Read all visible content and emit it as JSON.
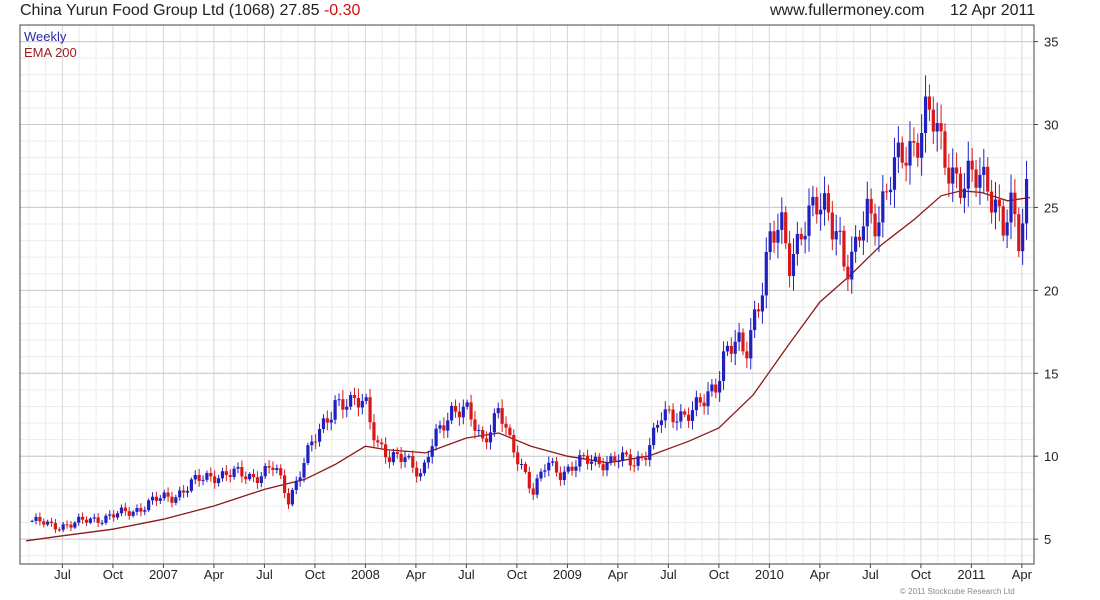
{
  "header": {
    "company": "China Yurun Food Group Ltd",
    "code": "(1068)",
    "price": "27.85",
    "change": "-0.30",
    "website": "www.fullermoney.com",
    "date": "12 Apr 2011"
  },
  "legend": {
    "period": "Weekly",
    "indicator": "EMA 200"
  },
  "copyright": "© 2011 Stockcube Research Ltd",
  "chart_data": {
    "type": "candlestick",
    "title": "China Yurun Food Group Ltd (1068) 27.85 -0.30",
    "series": [
      {
        "name": "Weekly"
      },
      {
        "name": "EMA 200"
      }
    ],
    "ylim": [
      3.5,
      36
    ],
    "y_ticks": [
      5,
      10,
      15,
      20,
      25,
      30,
      35
    ],
    "y_tick_labels": [
      "5",
      "10",
      "15",
      "20",
      "25",
      "30",
      "35"
    ],
    "x_ticks": [
      "Jul",
      "Oct",
      "2007",
      "Apr",
      "Jul",
      "Oct",
      "2008",
      "Apr",
      "Jul",
      "Oct",
      "2009",
      "Apr",
      "Jul",
      "Oct",
      "2010",
      "Apr",
      "Jul",
      "Oct",
      "2011",
      "Apr"
    ],
    "x_tick_months": [
      2006.5,
      2006.75,
      2007.0,
      2007.25,
      2007.5,
      2007.75,
      2008.0,
      2008.25,
      2008.5,
      2008.75,
      2009.0,
      2009.25,
      2009.5,
      2009.75,
      2010.0,
      2010.25,
      2010.5,
      2010.75,
      2011.0,
      2011.25
    ],
    "grid": true,
    "price_path": [
      [
        2006.35,
        6.1
      ],
      [
        2006.45,
        5.8
      ],
      [
        2006.55,
        5.9
      ],
      [
        2006.65,
        6.2
      ],
      [
        2006.75,
        6.4
      ],
      [
        2006.85,
        6.7
      ],
      [
        2006.95,
        7.3
      ],
      [
        2007.05,
        7.6
      ],
      [
        2007.15,
        8.4
      ],
      [
        2007.25,
        8.9
      ],
      [
        2007.35,
        8.9
      ],
      [
        2007.45,
        8.8
      ],
      [
        2007.55,
        9.3
      ],
      [
        2007.62,
        7.4
      ],
      [
        2007.7,
        9.8
      ],
      [
        2007.78,
        11.6
      ],
      [
        2007.85,
        13.4
      ],
      [
        2007.92,
        12.9
      ],
      [
        2008.0,
        13.5
      ],
      [
        2008.06,
        10.8
      ],
      [
        2008.12,
        9.6
      ],
      [
        2008.2,
        10.2
      ],
      [
        2008.28,
        8.7
      ],
      [
        2008.34,
        11.0
      ],
      [
        2008.42,
        12.9
      ],
      [
        2008.5,
        12.6
      ],
      [
        2008.58,
        11.0
      ],
      [
        2008.66,
        12.8
      ],
      [
        2008.72,
        10.5
      ],
      [
        2008.78,
        9.4
      ],
      [
        2008.83,
        7.9
      ],
      [
        2008.9,
        9.5
      ],
      [
        2008.96,
        9.0
      ],
      [
        2009.05,
        9.6
      ],
      [
        2009.15,
        9.7
      ],
      [
        2009.25,
        9.8
      ],
      [
        2009.33,
        9.6
      ],
      [
        2009.4,
        10.5
      ],
      [
        2009.46,
        12.2
      ],
      [
        2009.55,
        12.6
      ],
      [
        2009.62,
        12.7
      ],
      [
        2009.68,
        13.2
      ],
      [
        2009.74,
        14.6
      ],
      [
        2009.78,
        16.5
      ],
      [
        2009.84,
        16.7
      ],
      [
        2009.88,
        15.8
      ],
      [
        2009.92,
        18.3
      ],
      [
        2009.96,
        20.3
      ],
      [
        2010.0,
        22.9
      ],
      [
        2010.06,
        23.5
      ],
      [
        2010.1,
        21.8
      ],
      [
        2010.16,
        24.0
      ],
      [
        2010.22,
        24.6
      ],
      [
        2010.28,
        24.9
      ],
      [
        2010.34,
        24.0
      ],
      [
        2010.38,
        21.0
      ],
      [
        2010.42,
        21.7
      ],
      [
        2010.48,
        25.0
      ],
      [
        2010.54,
        24.6
      ],
      [
        2010.6,
        26.4
      ],
      [
        2010.66,
        28.2
      ],
      [
        2010.72,
        29.2
      ],
      [
        2010.78,
        30.5
      ],
      [
        2010.82,
        29.7
      ],
      [
        2010.85,
        28.5
      ],
      [
        2010.9,
        27.6
      ],
      [
        2010.96,
        26.2
      ],
      [
        2011.02,
        26.6
      ],
      [
        2011.08,
        26.9
      ],
      [
        2011.12,
        25.4
      ],
      [
        2011.16,
        23.6
      ],
      [
        2011.2,
        24.6
      ],
      [
        2011.24,
        22.8
      ],
      [
        2011.27,
        26.1
      ],
      [
        2011.29,
        27.85
      ]
    ],
    "ema_path": [
      [
        2006.32,
        4.9
      ],
      [
        2006.5,
        5.2
      ],
      [
        2006.75,
        5.6
      ],
      [
        2007.0,
        6.2
      ],
      [
        2007.25,
        7.0
      ],
      [
        2007.5,
        8.0
      ],
      [
        2007.7,
        8.6
      ],
      [
        2007.85,
        9.5
      ],
      [
        2008.0,
        10.6
      ],
      [
        2008.1,
        10.4
      ],
      [
        2008.3,
        10.2
      ],
      [
        2008.5,
        11.1
      ],
      [
        2008.66,
        11.4
      ],
      [
        2008.82,
        10.6
      ],
      [
        2009.0,
        10.0
      ],
      [
        2009.2,
        9.6
      ],
      [
        2009.4,
        10.0
      ],
      [
        2009.6,
        10.9
      ],
      [
        2009.75,
        11.7
      ],
      [
        2009.92,
        13.7
      ],
      [
        2010.1,
        16.8
      ],
      [
        2010.25,
        19.3
      ],
      [
        2010.4,
        20.9
      ],
      [
        2010.55,
        22.7
      ],
      [
        2010.72,
        24.3
      ],
      [
        2010.85,
        25.7
      ],
      [
        2010.95,
        26.0
      ],
      [
        2011.05,
        25.9
      ],
      [
        2011.18,
        25.4
      ],
      [
        2011.29,
        25.6
      ]
    ]
  },
  "colors": {
    "up_candle": "#2020c0",
    "down_candle": "#d81818",
    "ema_line": "#8b1a1a",
    "grid": "#d8d8d8",
    "axis": "#444444"
  }
}
